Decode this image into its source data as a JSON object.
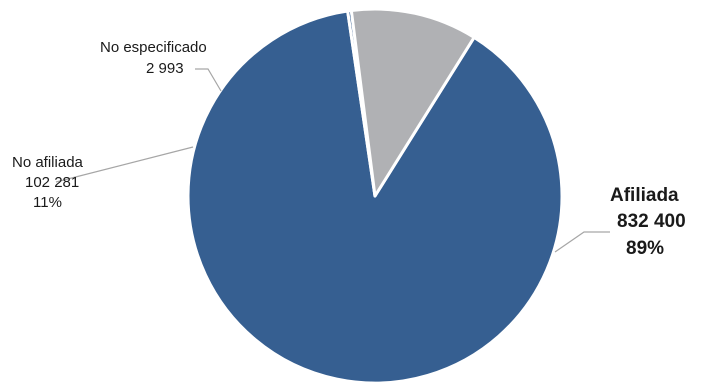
{
  "chart_data": {
    "type": "pie",
    "title": "",
    "slices": [
      {
        "label": "Afiliada",
        "value": 832400,
        "value_text": "832 400",
        "percent_text": "89%",
        "color": "#365F91"
      },
      {
        "label": "No especificado",
        "value": 2993,
        "value_text": "2 993",
        "percent_text": "",
        "color": "#365F91"
      },
      {
        "label": "No afiliada",
        "value": 102281,
        "value_text": "102 281",
        "percent_text": "11%",
        "color": "#B0B1B4"
      }
    ],
    "legend": "none"
  }
}
